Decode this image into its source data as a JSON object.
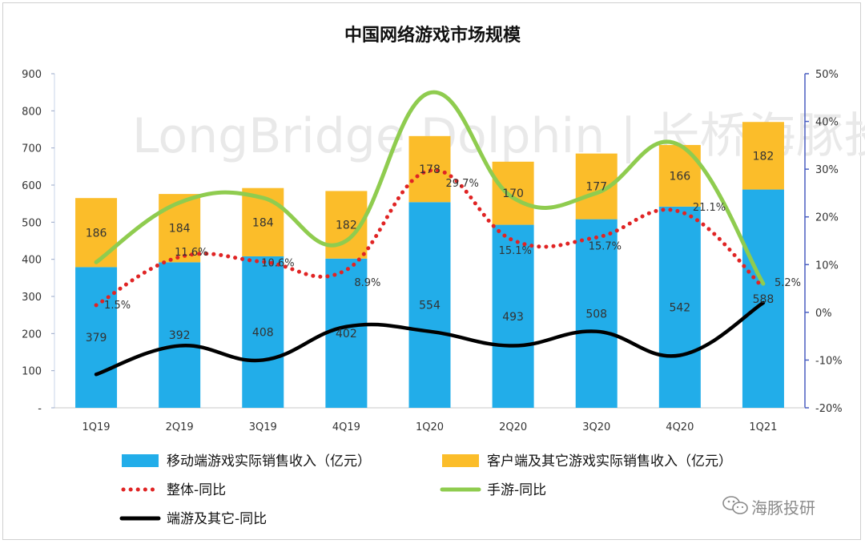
{
  "chart_data": {
    "type": "bar",
    "title": "中国网络游戏市场规模",
    "categories": [
      "1Q19",
      "2Q19",
      "3Q19",
      "4Q19",
      "1Q20",
      "2Q20",
      "3Q20",
      "4Q20",
      "1Q21"
    ],
    "left_axis": {
      "min": 0,
      "max": 900,
      "step": 100,
      "ticks": [
        "-",
        "100",
        "200",
        "300",
        "400",
        "500",
        "600",
        "700",
        "800",
        "900"
      ]
    },
    "right_axis": {
      "min": -20,
      "max": 50,
      "step": 10,
      "ticks": [
        "-20%",
        "-10%",
        "0%",
        "10%",
        "20%",
        "30%",
        "40%",
        "50%"
      ]
    },
    "bar_series": [
      {
        "name": "移动端游戏实际销售收入（亿元）",
        "color": "#22ade9",
        "values": [
          379,
          392,
          408,
          402,
          554,
          493,
          508,
          542,
          588
        ],
        "labels": [
          "379",
          "392",
          "408",
          "402",
          "554",
          "493",
          "508",
          "542",
          "588"
        ]
      },
      {
        "name": "客户端及其它游戏实际销售收入（亿元）",
        "color": "#fbbd2a",
        "values": [
          186,
          184,
          184,
          182,
          178,
          170,
          177,
          166,
          182
        ],
        "labels": [
          "186",
          "184",
          "184",
          "182",
          "178",
          "170",
          "177",
          "166",
          "182"
        ]
      }
    ],
    "line_series": [
      {
        "name": "整体-同比",
        "color": "#e02424",
        "style": "dotted",
        "values": [
          1.5,
          11.6,
          10.6,
          8.9,
          29.7,
          15.1,
          15.7,
          21.1,
          5.2
        ],
        "labels": [
          "1.5%",
          "11.6%",
          "10.6%",
          "8.9%",
          "29.7%",
          "15.1%",
          "15.7%",
          "21.1%",
          "5.2%"
        ]
      },
      {
        "name": "手游-同比",
        "color": "#8fcc4f",
        "style": "solid",
        "values": [
          10.5,
          23,
          24,
          15,
          46,
          24,
          25,
          35,
          6
        ]
      },
      {
        "name": "端游及其它-同比",
        "color": "#000000",
        "style": "solid",
        "values": [
          -13,
          -7,
          -10,
          -3,
          -4,
          -7,
          -4,
          -9,
          2
        ]
      }
    ]
  },
  "watermark": {
    "text": "LongBridge Dolphin | 长桥海豚投研"
  },
  "brand": {
    "text": "海豚投研"
  },
  "colors": {
    "axis_right": "#4a5fc1",
    "axis_left": "#c8d4ea"
  }
}
